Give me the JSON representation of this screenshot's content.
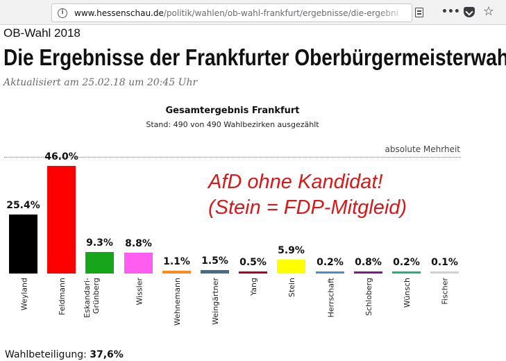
{
  "browser": {
    "url_domain": "www.hessenschau.de",
    "url_path": "/politik/wahlen/ob-wahl-frankfurt/ergebnisse/die-ergebni",
    "more_label": "•••",
    "star_label": "☆"
  },
  "page": {
    "kicker": "OB-Wahl 2018",
    "headline": "Die Ergebnisse der Frankfurter Oberbürgermeisterwahl",
    "updated": "Aktualisiert am 25.02.18 um 20:45 Uhr",
    "annotation_line1": "AfD ohne Kandidat!",
    "annotation_line2": "(Stein = FDP-Mitgleid)",
    "turnout_label": "Wahlbeteiligung:",
    "turnout_value": "37,6%"
  },
  "chart_data": {
    "type": "bar",
    "title": "Gesamtergebnis Frankfurt",
    "subtitle": "Stand: 490 von 490 Wahlbezirken ausgezählt",
    "reference_line_label": "absolute Mehrheit",
    "reference_line_value": 50,
    "unit": "%",
    "categories": [
      "Weyland",
      "Feldmann",
      "Eskandari-\nGrünberg",
      "Wissler",
      "Wehnemann",
      "Weingärtner",
      "Yang",
      "Stein",
      "Herrschaft",
      "Schloberg",
      "Wünsch",
      "Fischer"
    ],
    "values": [
      25.4,
      46.0,
      9.3,
      8.8,
      1.1,
      1.5,
      0.5,
      5.9,
      0.2,
      0.8,
      0.2,
      0.1
    ],
    "value_labels": [
      "25.4%",
      "46.0%",
      "9.3%",
      "8.8%",
      "1.1%",
      "1.5%",
      "0.5%",
      "5.9%",
      "0.2%",
      "0.8%",
      "0.2%",
      "0.1%"
    ],
    "colors": [
      "#000000",
      "#ff0000",
      "#17a51c",
      "#ff5cf0",
      "#ff8c1a",
      "#4a6a8a",
      "#b3001b",
      "#ffff00",
      "#4a90c8",
      "#7a1a8c",
      "#19b86a",
      "#d0d0d0"
    ],
    "ylim": [
      0,
      50
    ],
    "grid": false,
    "legend": "none"
  }
}
